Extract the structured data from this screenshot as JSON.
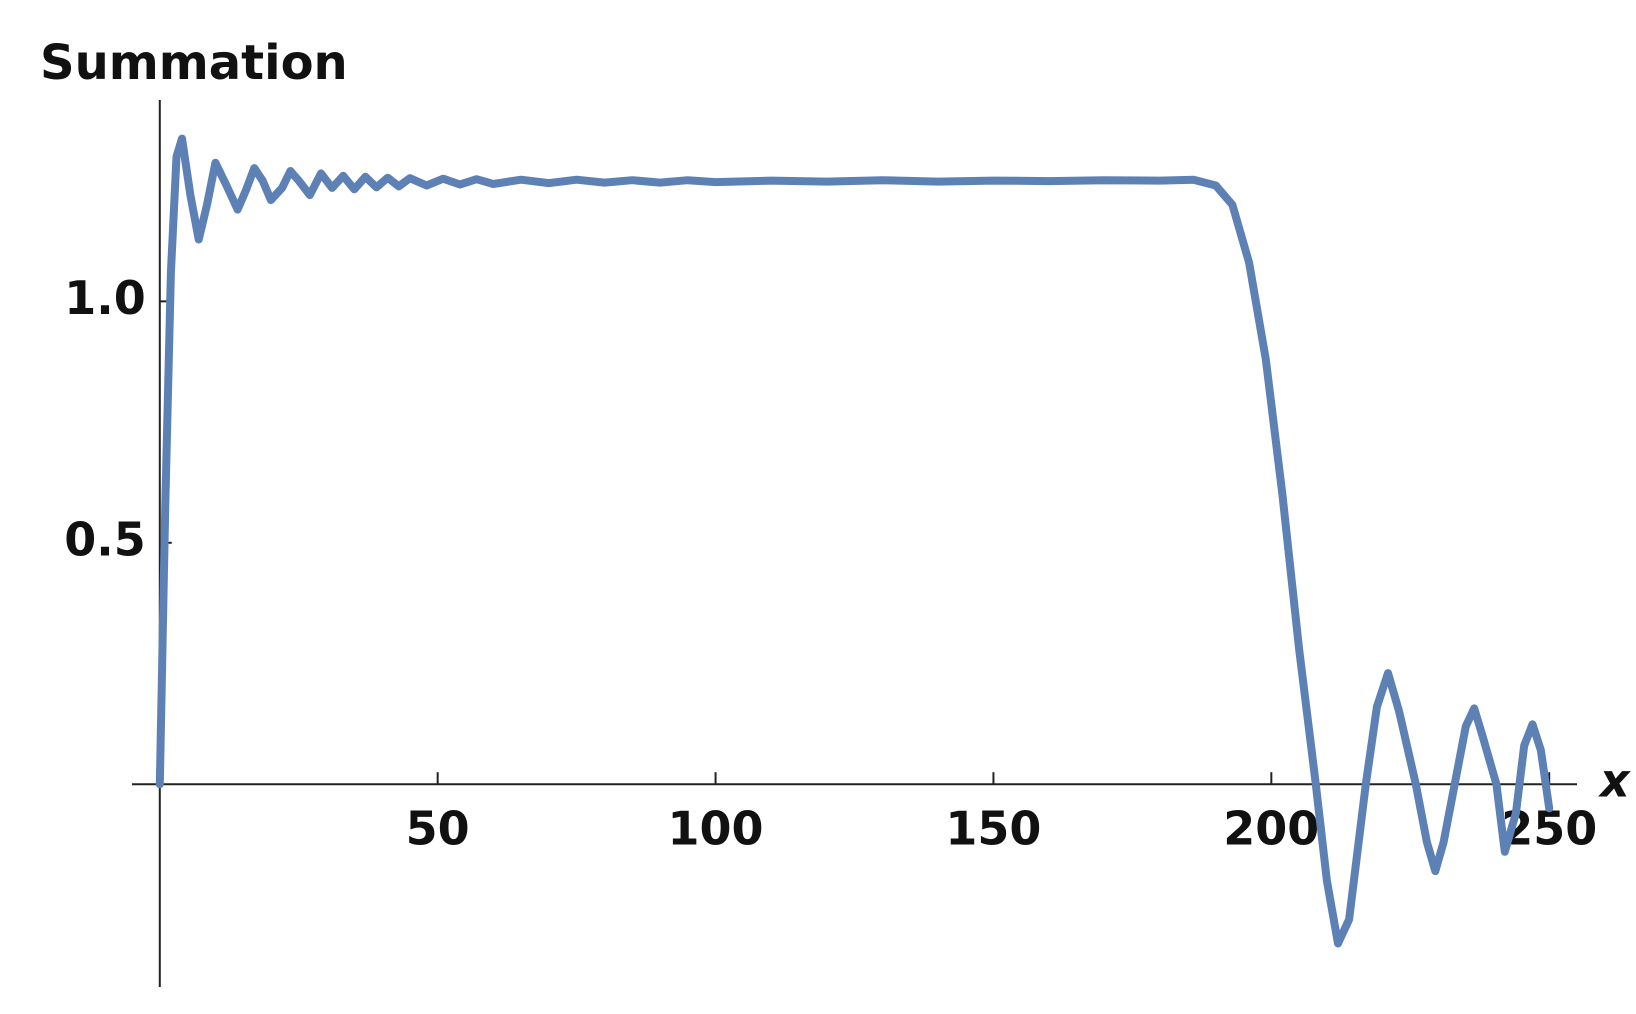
{
  "chart_data": {
    "type": "line",
    "title": "Summation",
    "x_label": "x",
    "xlim": [
      -5,
      255
    ],
    "ylim": [
      -0.42,
      1.417
    ],
    "xticks": [
      50,
      100,
      150,
      200,
      250
    ],
    "yticks": [
      0.5,
      {
        "value": 1,
        "label": "1.0"
      }
    ],
    "series": [
      {
        "color": "#5e81b5",
        "x": [
          0,
          1,
          2,
          3,
          4,
          5.5,
          7,
          8.5,
          10,
          12,
          14,
          15.5,
          17,
          18.5,
          20,
          22,
          23.5,
          25,
          27,
          29,
          31,
          33,
          35,
          37,
          39,
          41,
          43,
          45,
          48,
          51,
          54,
          57,
          60,
          65,
          70,
          75,
          80,
          85,
          90,
          95,
          100,
          110,
          120,
          130,
          140,
          150,
          160,
          170,
          180,
          186,
          190,
          193,
          196,
          199,
          202,
          205,
          208,
          210,
          212,
          214,
          217,
          219,
          221,
          223,
          226,
          228,
          229.5,
          231,
          233,
          235,
          236.5,
          238,
          240.5,
          242,
          244,
          245.5,
          247,
          248.5,
          250
        ],
        "values": [
          0,
          0.58,
          1.06,
          1.3,
          1.337,
          1.22,
          1.128,
          1.2,
          1.287,
          1.24,
          1.19,
          1.23,
          1.276,
          1.25,
          1.21,
          1.235,
          1.27,
          1.25,
          1.22,
          1.265,
          1.235,
          1.26,
          1.232,
          1.258,
          1.236,
          1.256,
          1.238,
          1.255,
          1.24,
          1.254,
          1.242,
          1.253,
          1.243,
          1.252,
          1.245,
          1.252,
          1.246,
          1.251,
          1.246,
          1.251,
          1.247,
          1.25,
          1.248,
          1.251,
          1.248,
          1.25,
          1.249,
          1.251,
          1.25,
          1.252,
          1.24,
          1.2,
          1.08,
          0.88,
          0.6,
          0.28,
          0,
          -0.2,
          -0.33,
          -0.28,
          0,
          0.16,
          0.23,
          0.15,
          0,
          -0.12,
          -0.18,
          -0.12,
          0,
          0.12,
          0.157,
          0.1,
          0,
          -0.14,
          -0.06,
          0.08,
          0.124,
          0.07,
          -0.05
        ]
      }
    ]
  }
}
